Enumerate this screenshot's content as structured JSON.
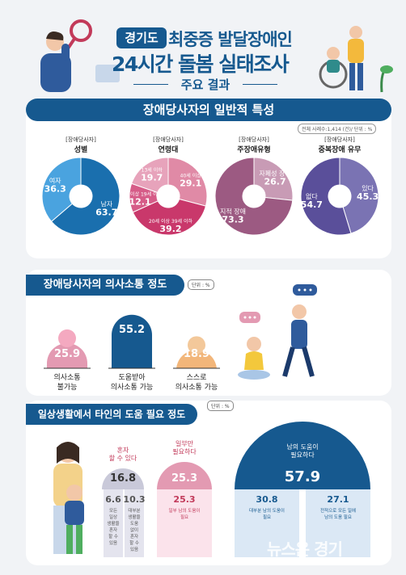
{
  "header": {
    "region": "경기도",
    "title_line1": "최중증 발달장애인",
    "title_line2": "24시간 돌봄 실태조사",
    "subtitle": "주요 결과"
  },
  "section1": {
    "title": "장애당사자의 일반적 특성",
    "note": "전체 사례수:1,414 (건)/ 단위 : %",
    "donuts": [
      {
        "label_top": "[장애당사자]",
        "label": "성별",
        "segments": [
          {
            "name": "남자",
            "value": "63.7",
            "color": "#1a6fae"
          },
          {
            "name": "여자",
            "value": "36.3",
            "color": "#4aa3df"
          }
        ]
      },
      {
        "label_top": "[장애당사자]",
        "label": "연령대",
        "segments": [
          {
            "name": "40세 이상",
            "value": "29.1",
            "color": "#e08aa6"
          },
          {
            "name": "20세 이상 39세 이하",
            "value": "39.2",
            "color": "#c9386b"
          },
          {
            "name": "14세 이상 19세 이하",
            "value": "12.1",
            "color": "#d65c88"
          },
          {
            "name": "13세 이하",
            "value": "19.7",
            "color": "#e7a3bb"
          }
        ]
      },
      {
        "label_top": "[장애당사자]",
        "label": "주장애유형",
        "segments": [
          {
            "name": "자폐성 장애",
            "value": "26.7",
            "color": "#c89bb5"
          },
          {
            "name": "지적 장애",
            "value": "73.3",
            "color": "#9c5a82"
          }
        ]
      },
      {
        "label_top": "[장애당사자]",
        "label": "중복장애 유무",
        "segments": [
          {
            "name": "있다",
            "value": "45.3",
            "color": "#7a73b3"
          },
          {
            "name": "없다",
            "value": "54.7",
            "color": "#5a4f9a"
          }
        ]
      }
    ]
  },
  "section2": {
    "title": "장애당사자의 의사소통 정도",
    "unit": "단위 : %",
    "items": [
      {
        "value": "25.9",
        "label1": "의사소통",
        "label2": "불가능"
      },
      {
        "value": "55.2",
        "label1": "도움받아",
        "label2": "의사소통 가능"
      },
      {
        "value": "18.9",
        "label1": "스스로",
        "label2": "의사소통 가능"
      }
    ]
  },
  "section3": {
    "title": "일상생활에서 타인의 도움 필요 정도",
    "unit": "단위 : %",
    "groups": [
      {
        "label1": "혼자",
        "label2": "할 수 있다",
        "value": "16.8"
      },
      {
        "label1": "일부만",
        "label2": "필요하다",
        "value": "25.3"
      },
      {
        "label1": "남의 도움이",
        "label2": "필요하다",
        "value": "57.9"
      }
    ],
    "sub": [
      {
        "value": "6.6",
        "desc": "모든 일상 생활을 혼자 할 수 있음"
      },
      {
        "value": "10.3",
        "desc": "대부분 생활을 도움 없이 혼자 할 수 있음"
      },
      {
        "value": "25.3",
        "desc": "일부 남의 도움이 필요"
      },
      {
        "value": "30.8",
        "desc": "대부분 남의 도움이 필요"
      },
      {
        "value": "27.1",
        "desc": "전적으로 모든 일에 남의 도움 필요"
      }
    ]
  },
  "watermark": "뉴스온 경기",
  "chart_data": [
    {
      "type": "pie",
      "title": "성별",
      "labels": [
        "남자",
        "여자"
      ],
      "values": [
        63.7,
        36.3
      ]
    },
    {
      "type": "pie",
      "title": "연령대",
      "labels": [
        "13세 이하",
        "14세 이상 19세 이하",
        "20세 이상 39세 이하",
        "40세 이상"
      ],
      "values": [
        19.7,
        12.1,
        39.2,
        29.1
      ]
    },
    {
      "type": "pie",
      "title": "주장애유형",
      "labels": [
        "자폐성 장애",
        "지적 장애"
      ],
      "values": [
        26.7,
        73.3
      ]
    },
    {
      "type": "pie",
      "title": "중복장애 유무",
      "labels": [
        "있다",
        "없다"
      ],
      "values": [
        45.3,
        54.7
      ]
    },
    {
      "type": "bar",
      "title": "장애당사자의 의사소통 정도",
      "categories": [
        "의사소통 불가능",
        "도움받아 의사소통 가능",
        "스스로 의사소통 가능"
      ],
      "values": [
        25.9,
        55.2,
        18.9
      ]
    },
    {
      "type": "bar",
      "title": "일상생활에서 타인의 도움 필요 정도",
      "categories": [
        "혼자 할 수 있다",
        "일부만 필요하다",
        "남의 도움이 필요하다"
      ],
      "values": [
        16.8,
        25.3,
        57.9
      ]
    }
  ]
}
